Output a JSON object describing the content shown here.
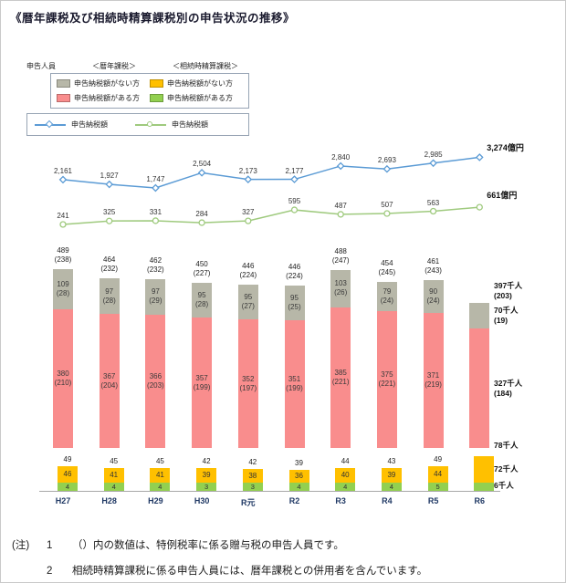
{
  "title": "《暦年課税及び相続時精算課税別の申告状況の推移》",
  "legend": {
    "people_label": "申告人員",
    "group1_header": "＜暦年課税＞",
    "group2_header": "＜相続時精算課税＞",
    "gray_label": "申告納税額がない方",
    "pink_label": "申告納税額がある方",
    "yellow_label": "申告納税額がない方",
    "green_label": "申告納税額がある方",
    "blue_line_label": "申告納税額",
    "green_line_label": "申告納税額"
  },
  "notes": {
    "prefix": "(注)",
    "note1_num": "1",
    "note1_text": "（）内の数値は、特例税率に係る贈与税の申告人員です。",
    "note2_num": "2",
    "note2_text": "相続時精算課税に係る申告人員には、暦年課税との併用者を含んでいます。"
  },
  "colors": {
    "axis_label": "#1f3864",
    "axis_line": "#a8a8a8",
    "value_text": "#333333"
  },
  "chart_data": {
    "type": "combo",
    "subtypes": [
      "stacked-bar",
      "line"
    ],
    "categories": [
      "H27",
      "H28",
      "H29",
      "H30",
      "R元",
      "R2",
      "R3",
      "R4",
      "R5",
      "R6"
    ],
    "unit_people": "千人",
    "unit_amount": "億円",
    "legend_position": "top-left",
    "grid": false,
    "bar_series": {
      "rekinen_total": {
        "name": "暦年課税・申告人員合計（千人）",
        "values": [
          489,
          464,
          462,
          450,
          446,
          446,
          488,
          454,
          461,
          397
        ],
        "paren": [
          238,
          232,
          232,
          227,
          224,
          224,
          247,
          245,
          243,
          203
        ]
      },
      "rekinen_no_tax": {
        "name": "暦年課税・申告納税額がない方（千人）",
        "color": "#b7b7a8",
        "values": [
          109,
          97,
          97,
          95,
          95,
          95,
          103,
          79,
          90,
          70
        ],
        "paren": [
          28,
          28,
          29,
          28,
          27,
          25,
          26,
          24,
          24,
          19
        ]
      },
      "rekinen_has_tax": {
        "name": "暦年課税・申告納税額がある方（千人）",
        "color": "#f98d8d",
        "values": [
          380,
          367,
          366,
          357,
          352,
          351,
          385,
          375,
          371,
          327
        ],
        "paren": [
          210,
          204,
          203,
          199,
          197,
          199,
          221,
          221,
          219,
          184
        ]
      },
      "seisan_total": {
        "name": "相続時精算課税・申告人員合計（千人）",
        "values": [
          49,
          45,
          45,
          42,
          42,
          39,
          44,
          43,
          49,
          78
        ]
      },
      "seisan_no_tax": {
        "name": "相続時精算課税・申告納税額がない方（千人）",
        "color": "#ffc000",
        "values": [
          46,
          41,
          41,
          39,
          38,
          36,
          40,
          39,
          44,
          72
        ]
      },
      "seisan_has_tax": {
        "name": "相続時精算課税・申告納税額がある方（千人）",
        "color": "#92d050",
        "values": [
          4,
          4,
          4,
          3,
          3,
          4,
          4,
          4,
          5,
          6
        ]
      }
    },
    "line_series": [
      {
        "name": "暦年課税・申告納税額（億円）",
        "color": "#5b9bd5",
        "marker": "diamond",
        "values": [
          2161,
          1927,
          1747,
          2504,
          2173,
          2177,
          2840,
          2693,
          2985,
          3274
        ],
        "labels": [
          "2,161",
          "1,927",
          "1,747",
          "2,504",
          "2,173",
          "2,177",
          "2,840",
          "2,693",
          "2,985",
          "3,274億円"
        ]
      },
      {
        "name": "相続時精算課税・申告納税額（億円）",
        "color": "#9fca7e",
        "marker": "circle",
        "values": [
          241,
          325,
          331,
          284,
          327,
          595,
          487,
          507,
          563,
          661
        ],
        "labels": [
          "241",
          "325",
          "331",
          "284",
          "327",
          "595",
          "487",
          "507",
          "563",
          "661億円"
        ]
      }
    ]
  }
}
